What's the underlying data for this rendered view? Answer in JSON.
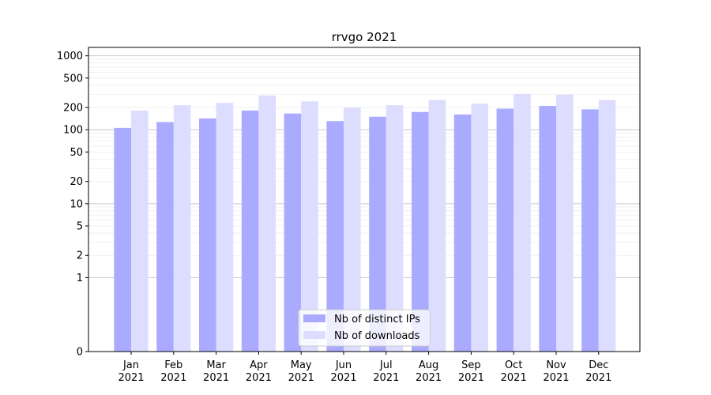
{
  "chart_data": {
    "type": "bar",
    "title": "rrvgo 2021",
    "xlabel": "",
    "ylabel": "",
    "scale": "symlog",
    "ylim": [
      0,
      1300
    ],
    "grid": true,
    "legend_position": "bottom-center",
    "categories": [
      {
        "month": "Jan",
        "year": "2021"
      },
      {
        "month": "Feb",
        "year": "2021"
      },
      {
        "month": "Mar",
        "year": "2021"
      },
      {
        "month": "Apr",
        "year": "2021"
      },
      {
        "month": "May",
        "year": "2021"
      },
      {
        "month": "Jun",
        "year": "2021"
      },
      {
        "month": "Jul",
        "year": "2021"
      },
      {
        "month": "Aug",
        "year": "2021"
      },
      {
        "month": "Sep",
        "year": "2021"
      },
      {
        "month": "Oct",
        "year": "2021"
      },
      {
        "month": "Nov",
        "year": "2021"
      },
      {
        "month": "Dec",
        "year": "2021"
      }
    ],
    "yticks": [
      {
        "value": 0,
        "label": "0"
      },
      {
        "value": 1,
        "label": "1"
      },
      {
        "value": 2,
        "label": "2"
      },
      {
        "value": 5,
        "label": "5"
      },
      {
        "value": 10,
        "label": "10"
      },
      {
        "value": 20,
        "label": "20"
      },
      {
        "value": 50,
        "label": "50"
      },
      {
        "value": 100,
        "label": "100"
      },
      {
        "value": 200,
        "label": "200"
      },
      {
        "value": 500,
        "label": "500"
      },
      {
        "value": 1000,
        "label": "1000"
      }
    ],
    "series": [
      {
        "name": "Nb of distinct IPs",
        "color": "#aaaaff",
        "values": [
          106,
          127,
          142,
          182,
          166,
          131,
          150,
          174,
          161,
          193,
          210,
          189
        ]
      },
      {
        "name": "Nb of downloads",
        "color": "#ddddff",
        "values": [
          182,
          215,
          231,
          291,
          242,
          200,
          215,
          253,
          225,
          305,
          299,
          253
        ]
      }
    ]
  }
}
